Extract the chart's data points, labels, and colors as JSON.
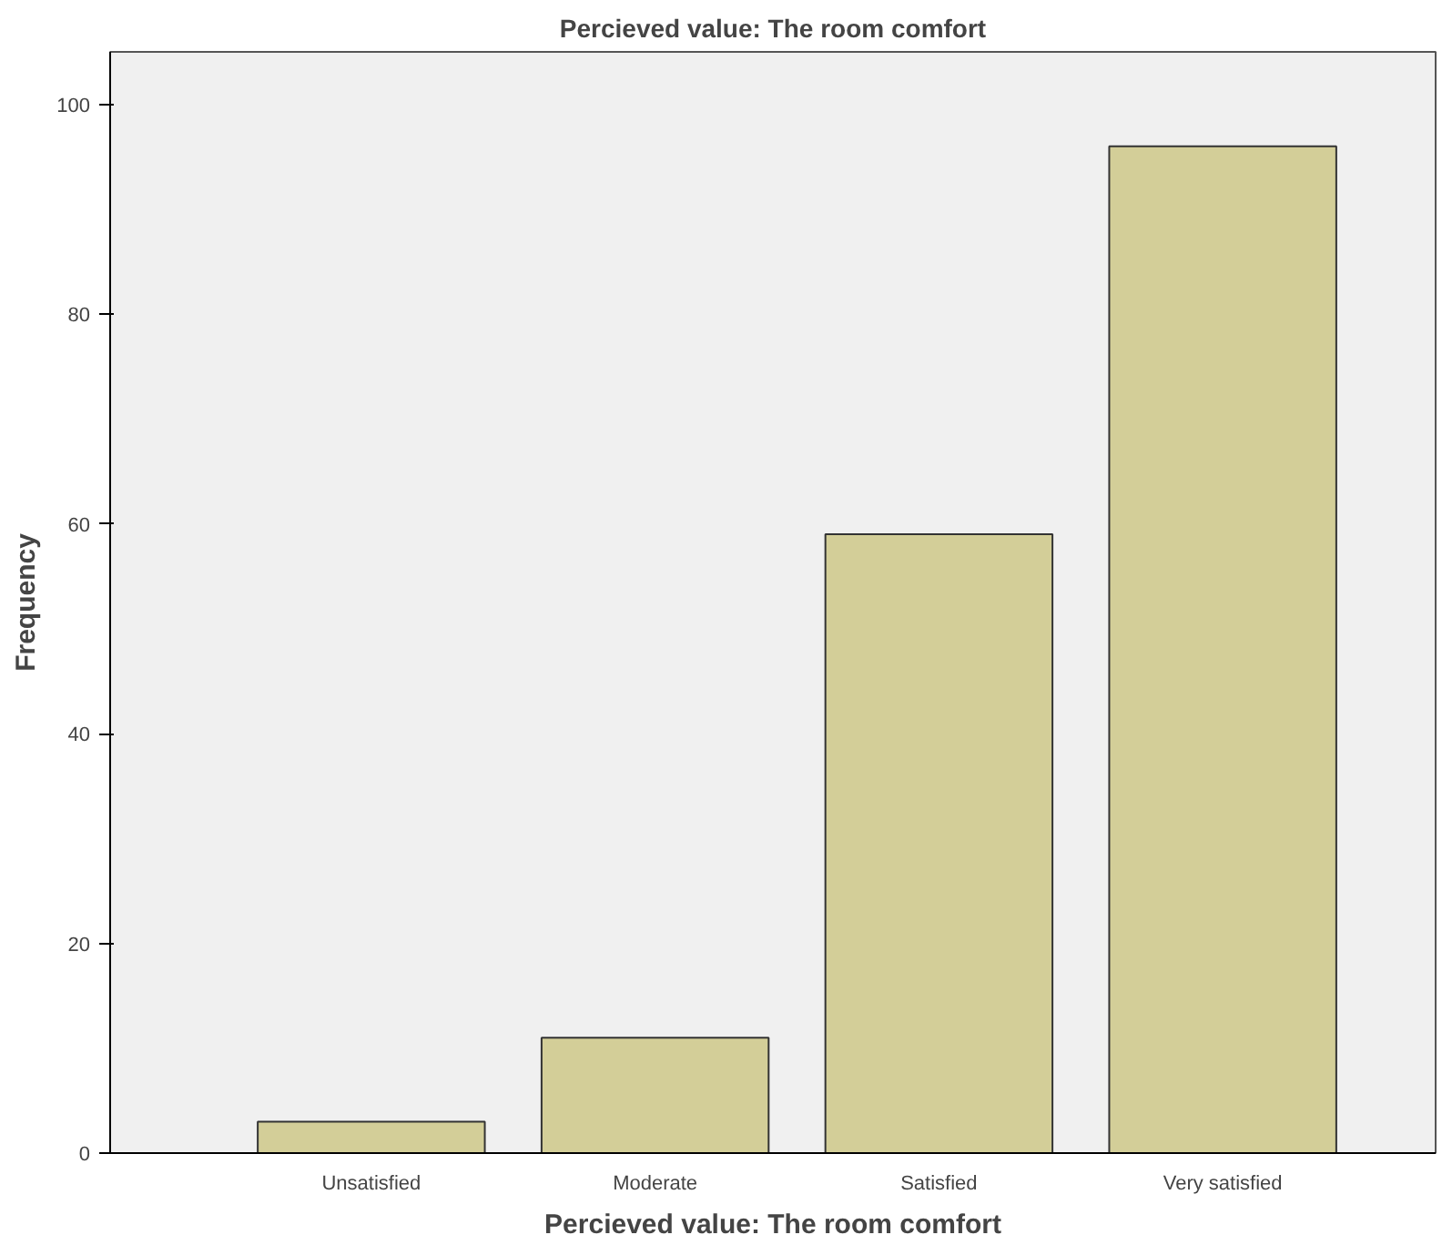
{
  "chart_data": {
    "type": "bar",
    "title": "Percieved value: The room comfort",
    "xlabel": "Percieved value: The room comfort",
    "ylabel": "Frequency",
    "categories": [
      "Unsatisfied",
      "Moderate",
      "Satisfied",
      "Very satisfied"
    ],
    "values": [
      3,
      11,
      59,
      96
    ],
    "color": "#d3ce98",
    "ylim": [
      0,
      105
    ],
    "yticks": [
      0,
      20,
      40,
      60,
      80,
      100
    ],
    "grid": false
  }
}
